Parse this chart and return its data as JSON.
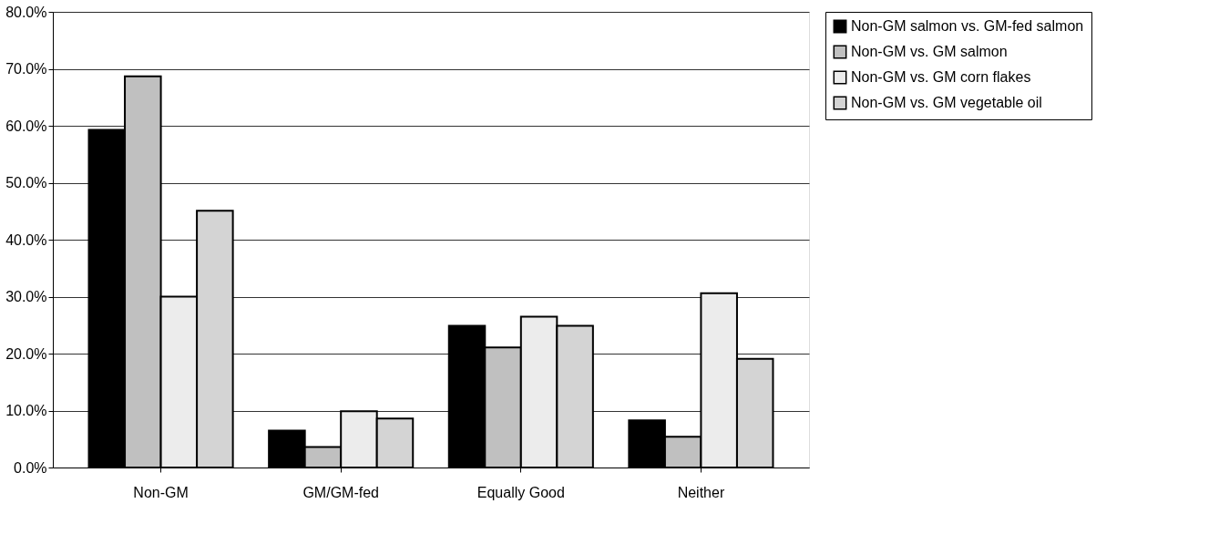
{
  "chart_data": {
    "type": "bar",
    "categories": [
      "Non-GM",
      "GM/GM-fed",
      "Equally Good",
      "Neither"
    ],
    "series": [
      {
        "name": "Non-GM salmon vs. GM-fed salmon",
        "color": "#000000",
        "values": [
          59.3,
          6.5,
          24.9,
          8.3
        ]
      },
      {
        "name": "Non-GM vs. GM salmon",
        "color": "#c0c0c0",
        "values": [
          68.7,
          3.6,
          21.1,
          5.4
        ]
      },
      {
        "name": "Non-GM vs. GM corn flakes",
        "color": "#ececec",
        "values": [
          30.0,
          9.9,
          26.5,
          30.6
        ]
      },
      {
        "name": "Non-GM vs. GM vegetable oil",
        "color": "#d4d4d4",
        "values": [
          45.1,
          8.6,
          24.9,
          19.1
        ]
      }
    ],
    "ylim": [
      0,
      80
    ],
    "yticks": [
      {
        "value": 0,
        "label": "0.0%"
      },
      {
        "value": 10,
        "label": "10.0%"
      },
      {
        "value": 20,
        "label": "20.0%"
      },
      {
        "value": 30,
        "label": "30.0%"
      },
      {
        "value": 40,
        "label": "40.0%"
      },
      {
        "value": 50,
        "label": "50.0%"
      },
      {
        "value": 60,
        "label": "60.0%"
      },
      {
        "value": 70,
        "label": "70.0%"
      },
      {
        "value": 80,
        "label": "80.0%"
      }
    ],
    "grid": "y",
    "legend": "right"
  }
}
